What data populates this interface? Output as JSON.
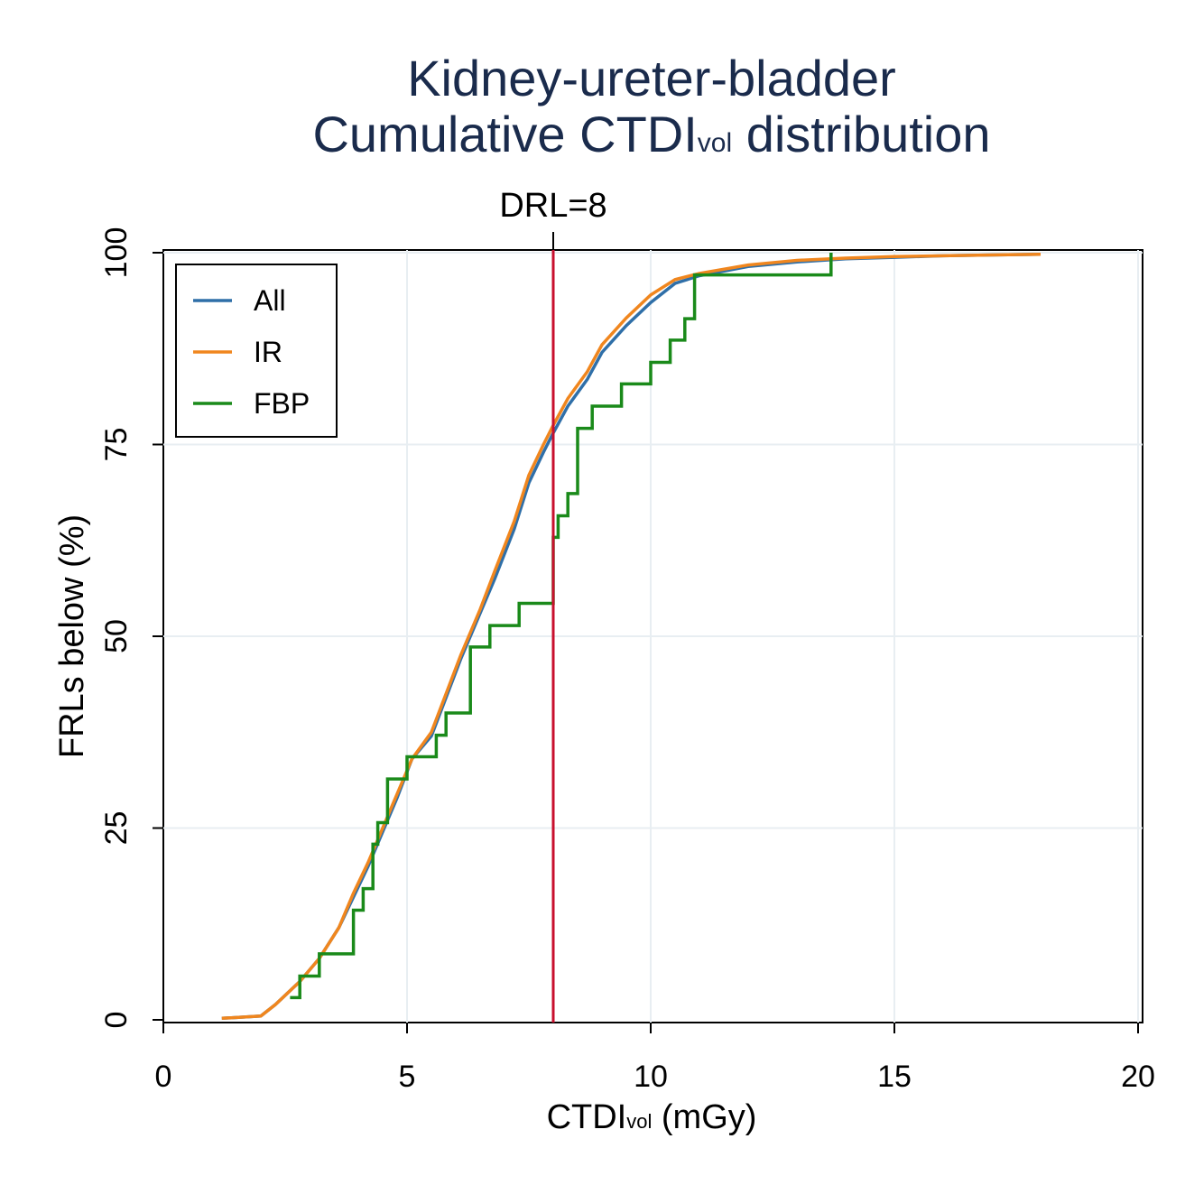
{
  "chart_data": {
    "type": "line",
    "title_line1": "Kidney-ureter-bladder",
    "title_line2_pre": "Cumulative CTDI",
    "title_line2_sub": "vol",
    "title_line2_post": " distribution",
    "xlabel_pre": "CTDI",
    "xlabel_sub": "vol",
    "xlabel_post": " (mGy)",
    "ylabel": "FRLs below (%)",
    "xlim": [
      0,
      20
    ],
    "ylim": [
      0,
      100
    ],
    "xticks": [
      0,
      5,
      10,
      15,
      20
    ],
    "yticks": [
      0,
      25,
      50,
      75,
      100
    ],
    "grid": true,
    "legend_position": "top-left",
    "reference_line": {
      "x": 8,
      "label": "DRL=8",
      "color": "#c8102e"
    },
    "series": [
      {
        "name": "All",
        "color": "#2f6fa8",
        "step": false,
        "x": [
          1.2,
          2.0,
          2.3,
          2.8,
          3.2,
          3.6,
          3.9,
          4.2,
          4.5,
          4.8,
          5.1,
          5.5,
          5.8,
          6.1,
          6.5,
          6.8,
          7.2,
          7.5,
          7.8,
          8.0,
          8.3,
          8.7,
          9.0,
          9.5,
          10.0,
          10.5,
          11.0,
          12.0,
          13.0,
          14.0,
          15.0,
          16.0,
          17.0,
          18.0
        ],
        "y": [
          0.2,
          0.5,
          2.0,
          5.0,
          8.0,
          12.0,
          16.0,
          20.0,
          24.5,
          29.0,
          34.0,
          37.0,
          42.0,
          47.0,
          53.0,
          57.5,
          64.0,
          70.0,
          74.0,
          76.5,
          80.0,
          83.5,
          87.0,
          90.5,
          93.5,
          96.0,
          97.0,
          98.2,
          98.8,
          99.2,
          99.4,
          99.6,
          99.7,
          99.8
        ]
      },
      {
        "name": "IR",
        "color": "#f0861e",
        "step": false,
        "x": [
          1.2,
          2.0,
          2.3,
          2.8,
          3.2,
          3.6,
          3.9,
          4.2,
          4.5,
          4.8,
          5.1,
          5.5,
          5.8,
          6.1,
          6.5,
          6.8,
          7.2,
          7.5,
          7.8,
          8.0,
          8.3,
          8.7,
          9.0,
          9.5,
          10.0,
          10.5,
          11.0,
          12.0,
          13.0,
          14.0,
          15.0,
          16.0,
          17.0,
          18.0
        ],
        "y": [
          0.2,
          0.5,
          2.0,
          5.0,
          8.0,
          12.0,
          16.5,
          20.5,
          25.0,
          29.5,
          34.0,
          37.5,
          42.5,
          47.5,
          53.5,
          58.5,
          65.0,
          71.0,
          75.0,
          77.5,
          81.0,
          84.5,
          88.0,
          91.5,
          94.5,
          96.5,
          97.3,
          98.4,
          99.0,
          99.3,
          99.5,
          99.6,
          99.7,
          99.8
        ]
      },
      {
        "name": "FBP",
        "color": "#1a8a1a",
        "step": true,
        "x": [
          2.6,
          2.8,
          3.2,
          3.9,
          4.1,
          4.3,
          4.4,
          4.6,
          5.0,
          5.6,
          5.8,
          6.3,
          6.7,
          7.3,
          8.0,
          8.1,
          8.3,
          8.5,
          8.8,
          9.4,
          10.0,
          10.4,
          10.7,
          10.9,
          13.7
        ],
        "y": [
          2.9,
          5.7,
          8.6,
          14.3,
          17.1,
          22.9,
          25.7,
          31.4,
          34.3,
          37.1,
          40.0,
          48.6,
          51.4,
          54.3,
          62.9,
          65.7,
          68.6,
          77.1,
          80.0,
          82.9,
          85.7,
          88.6,
          91.4,
          97.1,
          100.0
        ]
      }
    ]
  }
}
